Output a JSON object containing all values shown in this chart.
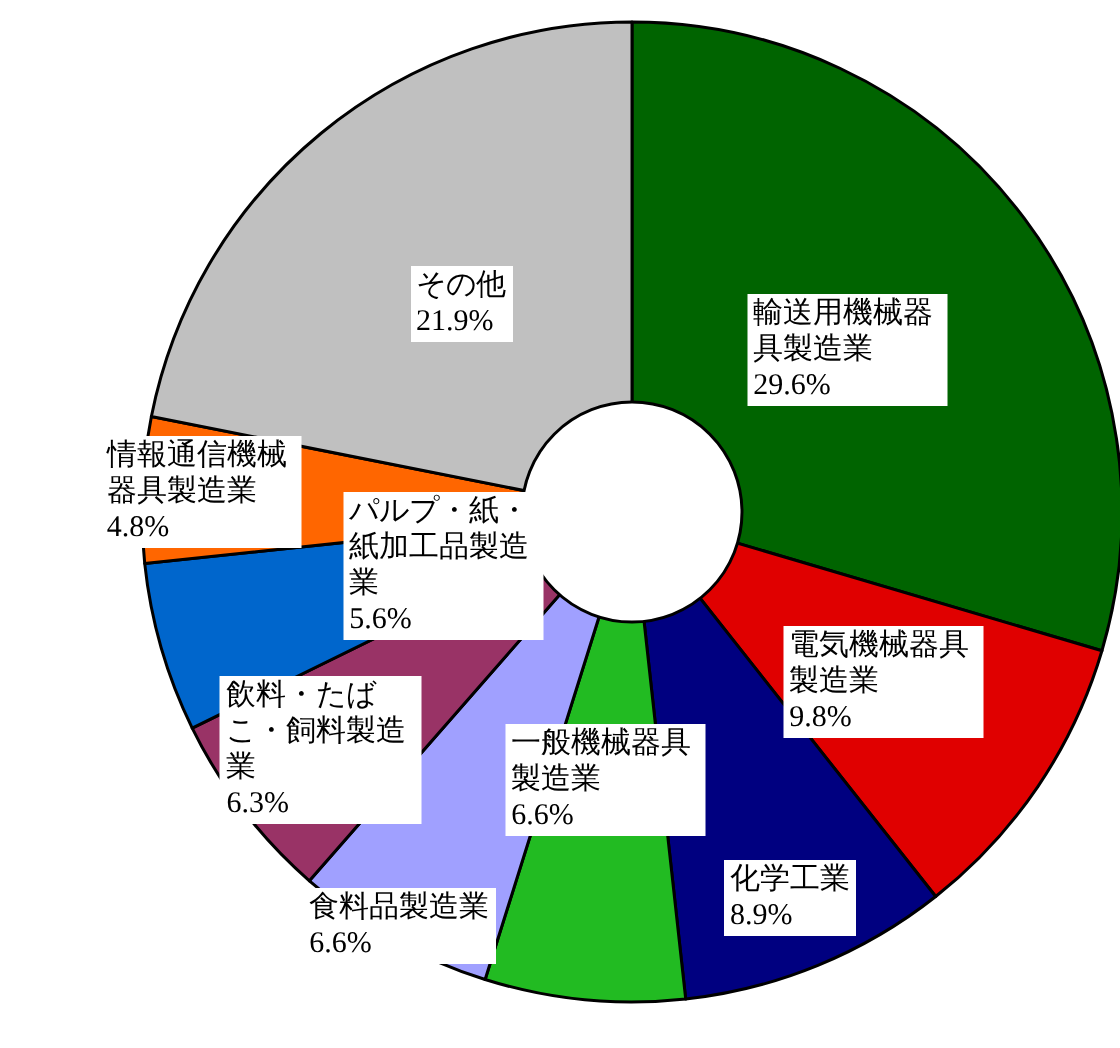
{
  "chart_data": {
    "type": "donut",
    "categories": [
      "輸送用機械器具製造業",
      "電気機械器具製造業",
      "化学工業",
      "一般機械器具製造業",
      "食料品製造業",
      "飲料・たばこ・飼料製造業",
      "パルプ・紙・紙加工品製造業",
      "情報通信機械器具製造業",
      "その他"
    ],
    "values": [
      29.6,
      9.8,
      8.9,
      6.6,
      6.6,
      6.3,
      5.6,
      4.8,
      21.9
    ],
    "value_labels": [
      "29.6%",
      "9.8%",
      "8.9%",
      "6.6%",
      "6.6%",
      "6.3%",
      "5.6%",
      "4.8%",
      "21.9%"
    ],
    "colors": [
      "#006400",
      "#e00000",
      "#000080",
      "#22bb22",
      "#a0a0ff",
      "#993366",
      "#0066cc",
      "#ff6600",
      "#c0c0c0"
    ]
  }
}
